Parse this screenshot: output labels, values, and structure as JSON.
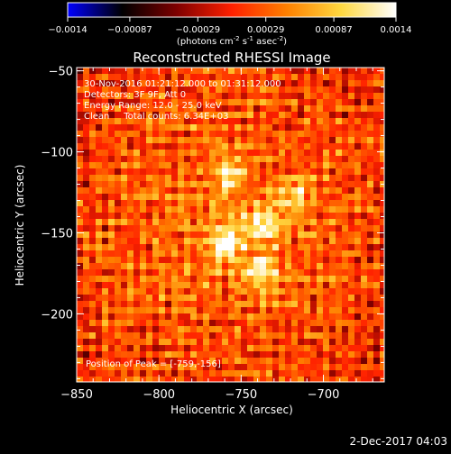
{
  "colorbar": {
    "ticks": [
      "-0.0014",
      "-0.00087",
      "-0.00029",
      "0.00029",
      "0.00087",
      "0.0014"
    ],
    "tick_values": [
      -0.0014,
      -0.00087,
      -0.00029,
      0.00029,
      0.00087,
      0.0014
    ],
    "range": [
      -0.0014,
      0.0014
    ],
    "units_prefix": "(photons cm",
    "units_exp1": "-2",
    "units_mid": " s",
    "units_exp2": "-1",
    "units_mid2": " asec",
    "units_exp3": "-2",
    "units_suffix": ")",
    "colors": [
      "#0000ff",
      "#000000",
      "#7f0000",
      "#ff2000",
      "#ff8000",
      "#ffd840",
      "#ffffff"
    ]
  },
  "chart_data": {
    "type": "heatmap",
    "title": "Reconstructed RHESSI Image",
    "xlabel": "Heliocentric X (arcsec)",
    "ylabel": "Heliocentric Y (arcsec)",
    "xlim": [
      -850,
      -663
    ],
    "ylim": [
      -242,
      -48
    ],
    "xticks": [
      -850,
      -800,
      -750,
      -700
    ],
    "xtick_labels": [
      "−850",
      "−800",
      "−750",
      "−700"
    ],
    "yticks": [
      -50,
      -100,
      -150,
      -200
    ],
    "ytick_labels": [
      "−50",
      "−100",
      "−150",
      "−200"
    ],
    "sources": [
      {
        "x": -759,
        "y": -156,
        "amplitude": 1.0
      },
      {
        "x": -738,
        "y": -175,
        "amplitude": 0.85
      },
      {
        "x": -736,
        "y": -145,
        "amplitude": 0.85
      },
      {
        "x": -757,
        "y": -115,
        "amplitude": 0.75
      },
      {
        "x": -717,
        "y": -127,
        "amplitude": 0.6
      }
    ],
    "peak": [
      -759,
      -156
    ],
    "annotations": {
      "line1": "30-Nov-2016 01:21:12.000 to 01:31:12.000",
      "line2": "Detectors: 3F 9F, Att 0",
      "line3": "Energy Range: 12.0 - 25.0 keV",
      "line4": "Clean     Total counts: 6.34E+03",
      "peak_label": "Position of Peak = [-759,-156]"
    }
  },
  "footer": {
    "timestamp": "2-Dec-2017 04:03"
  }
}
